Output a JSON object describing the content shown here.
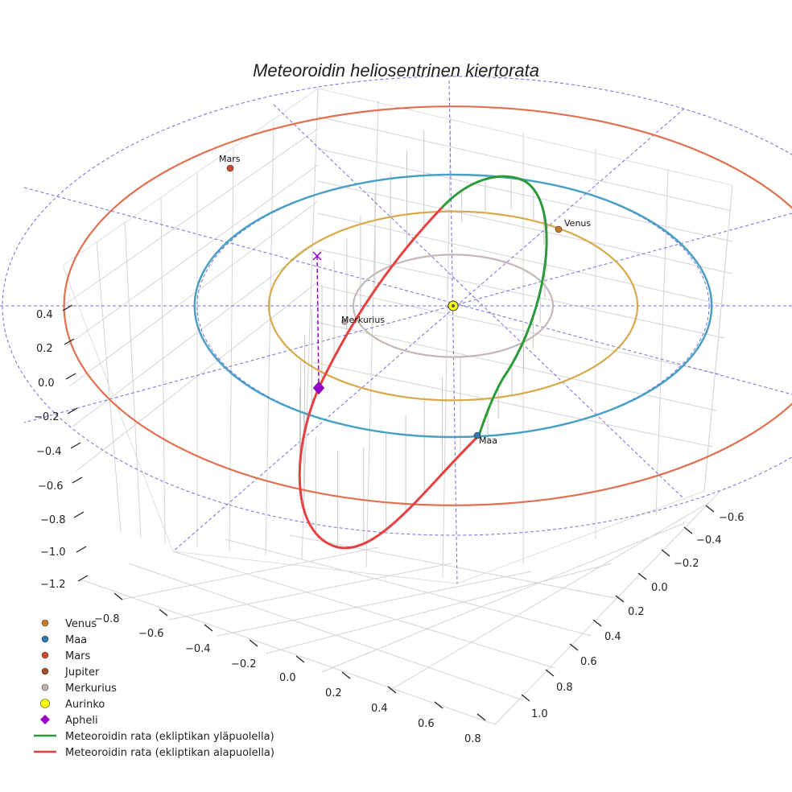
{
  "chart_data": {
    "type": "3d-orbit",
    "title": "Meteoroidin heliosentrinen kiertorata",
    "axes": {
      "x": {
        "ticks": [
          "−0.8",
          "−0.6",
          "−0.4",
          "−0.2",
          "0.0",
          "0.2",
          "0.4",
          "0.6",
          "0.8"
        ]
      },
      "y": {
        "ticks": [
          "−0.6",
          "−0.4",
          "−0.2",
          "0.0",
          "0.2",
          "0.4",
          "0.6",
          "0.8",
          "1.0"
        ]
      },
      "z": {
        "ticks": [
          "0.4",
          "0.2",
          "0.0",
          "−0.2",
          "−0.4",
          "−0.6",
          "−0.8",
          "−1.0",
          "−1.2"
        ]
      }
    },
    "orbits": [
      {
        "name": "Merkurius",
        "radius_au": 0.39,
        "color": "#c4b8b4"
      },
      {
        "name": "Venus",
        "radius_au": 0.72,
        "color": "#d8a94a"
      },
      {
        "name": "Maa",
        "radius_au": 1.0,
        "color": "#4a9fc4"
      },
      {
        "name": "Mars",
        "radius_au": 1.52,
        "color": "#e07050"
      }
    ],
    "planets": [
      {
        "name": "Venus",
        "label": "Venus",
        "color": "#cc7722"
      },
      {
        "name": "Maa",
        "label": "Maa",
        "color": "#2a7ab8"
      },
      {
        "name": "Mars",
        "label": "Mars",
        "color": "#d04a2a"
      },
      {
        "name": "Merkurius",
        "label": "Merkurius",
        "color": "#b8a8a4"
      }
    ],
    "sun": {
      "name": "Aurinko",
      "color": "#ffff00"
    },
    "aphelion": {
      "name": "Apheli",
      "color": "#9900cc"
    },
    "meteoroid": {
      "above_ecliptic_color": "#2a9a3a",
      "below_ecliptic_color": "#e84040"
    },
    "legend": [
      {
        "label": "Venus",
        "kind": "dot",
        "color": "#cc7722"
      },
      {
        "label": "Maa",
        "kind": "dot",
        "color": "#2a7ab8"
      },
      {
        "label": "Mars",
        "kind": "dot",
        "color": "#d04a2a"
      },
      {
        "label": "Jupiter",
        "kind": "dot",
        "color": "#a0522d"
      },
      {
        "label": "Merkurius",
        "kind": "dot",
        "color": "#c8b0aa"
      },
      {
        "label": "Aurinko",
        "kind": "bigdot",
        "color": "#ffff00"
      },
      {
        "label": "Apheli",
        "kind": "diamond",
        "color": "#9900cc"
      },
      {
        "label": "Meteoroidin rata (ekliptikan yläpuolella)",
        "kind": "line",
        "color": "#2a9a3a"
      },
      {
        "label": "Meteoroidin rata (ekliptikan alapuolella)",
        "kind": "line",
        "color": "#e84040"
      }
    ]
  }
}
